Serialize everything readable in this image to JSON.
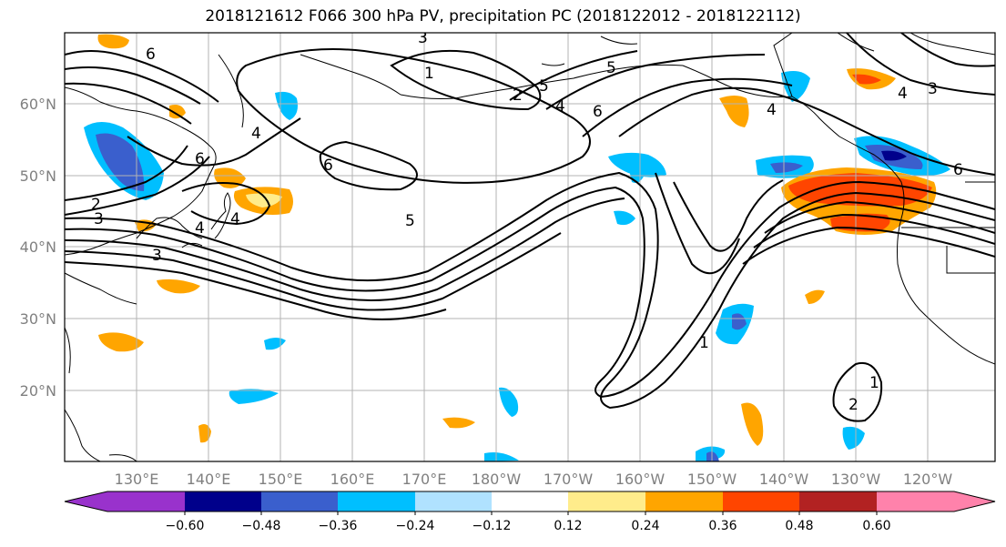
{
  "title": "2018121612 F066 300 hPa PV, precipitation PC (2018122012 - 2018122112)",
  "lat_labels": [
    "60°N",
    "50°N",
    "40°N",
    "30°N",
    "20°N"
  ],
  "lon_labels": [
    "130°E",
    "140°E",
    "150°E",
    "160°E",
    "170°E",
    "180°W",
    "170°W",
    "160°W",
    "150°W",
    "140°W",
    "130°W",
    "120°W"
  ],
  "colorbar": {
    "colors": [
      "#9932CC",
      "#00008B",
      "#3A5FCD",
      "#00BFFF",
      "#B0E2FF",
      "#FFFFFF",
      "#FFEC8B",
      "#FFA500",
      "#FF4500",
      "#B22222",
      "#FF82AB"
    ],
    "tick_labels": [
      "−0.60",
      "−0.48",
      "−0.36",
      "−0.24",
      "−0.12",
      "0.12",
      "0.24",
      "0.36",
      "0.48",
      "0.60"
    ]
  },
  "contour_labels": [
    "6",
    "4",
    "6",
    "2",
    "3",
    "4",
    "4",
    "3",
    "1",
    "2",
    "3",
    "4",
    "5",
    "6",
    "6",
    "5",
    "4",
    "1",
    "4",
    "3",
    "6",
    "1",
    "2",
    "5"
  ]
}
